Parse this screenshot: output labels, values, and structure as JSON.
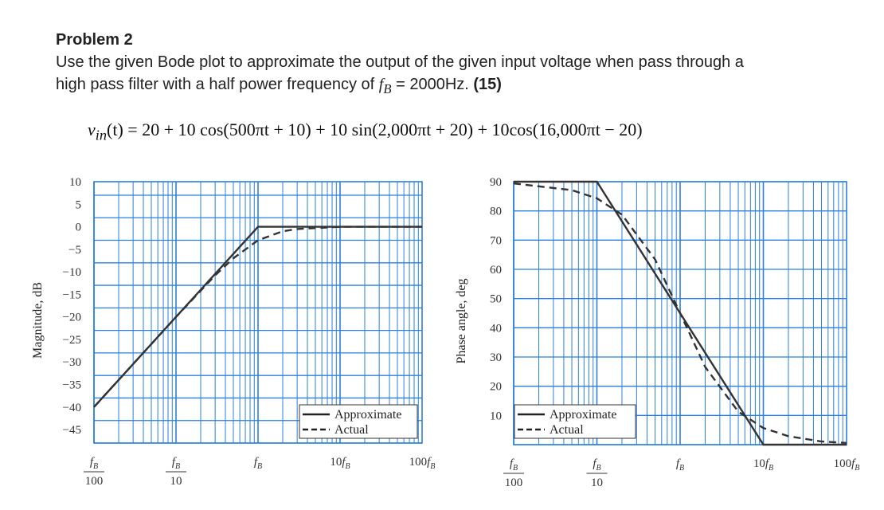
{
  "problem": {
    "title": "Problem 2",
    "line1": "Use the given Bode plot to approximate the output of the given input voltage when pass through a",
    "line2_pre": "high pass filter with a half power frequency of ",
    "fb_symbol": "f",
    "fb_sub": "B",
    "line2_post": " = 2000Hz. ",
    "points": "(15)"
  },
  "equation": {
    "text": "v",
    "sub": "in",
    "rest": "(t) = 20 + 10 cos(500πt + 10) + 10 sin(2,000πt + 20) + 10cos(16,000πt − 20)"
  },
  "chart_data": [
    {
      "type": "line",
      "title": "",
      "xlabel": "",
      "ylabel": "Magnitude, dB",
      "xscale": "log",
      "xlim": [
        0.01,
        100
      ],
      "ylim": [
        -48,
        10
      ],
      "x_tick_labels": [
        {
          "value": 0.01,
          "num": "fB",
          "den": "100"
        },
        {
          "value": 0.1,
          "num": "fB",
          "den": "10"
        },
        {
          "value": 1,
          "num": "fB",
          "den": ""
        },
        {
          "value": 10,
          "num": "10fB",
          "den": ""
        },
        {
          "value": 100,
          "num": "100fB",
          "den": ""
        }
      ],
      "y_ticks": [
        10,
        5,
        0,
        -5,
        -10,
        -15,
        -20,
        -25,
        -30,
        -35,
        -40,
        -45
      ],
      "y_tick_labels": [
        "10",
        "5",
        "0",
        "−5",
        "−10",
        "−15",
        "−20",
        "−25",
        "−30",
        "−35",
        "−40",
        "−45"
      ],
      "series": [
        {
          "name": "Approximate",
          "style": "solid",
          "x": [
            0.01,
            1,
            100
          ],
          "y": [
            -40,
            0,
            0
          ]
        },
        {
          "name": "Actual",
          "style": "dashed",
          "x": [
            0.01,
            0.1,
            0.3,
            0.5,
            1,
            2,
            3,
            10,
            100
          ],
          "y": [
            -40,
            -20,
            -10.8,
            -7,
            -3,
            -1,
            -0.5,
            0,
            0
          ]
        }
      ],
      "legend": {
        "position": "bottom-right",
        "entries": [
          "Approximate",
          "Actual"
        ]
      }
    },
    {
      "type": "line",
      "title": "",
      "xlabel": "",
      "ylabel": "Phase angle, deg",
      "xscale": "log",
      "xlim": [
        0.01,
        100
      ],
      "ylim": [
        0,
        90
      ],
      "x_tick_labels": [
        {
          "value": 0.01,
          "num": "fB",
          "den": "100"
        },
        {
          "value": 0.1,
          "num": "fB",
          "den": "10"
        },
        {
          "value": 1,
          "num": "fB",
          "den": ""
        },
        {
          "value": 10,
          "num": "10fB",
          "den": ""
        },
        {
          "value": 100,
          "num": "100fB",
          "den": ""
        }
      ],
      "y_ticks": [
        90,
        80,
        70,
        60,
        50,
        40,
        30,
        20,
        10
      ],
      "y_tick_labels": [
        "90",
        "80",
        "70",
        "60",
        "50",
        "40",
        "30",
        "20",
        "10"
      ],
      "series": [
        {
          "name": "Approximate",
          "style": "solid",
          "x": [
            0.01,
            0.1,
            10,
            100
          ],
          "y": [
            90,
            90,
            0,
            0
          ]
        },
        {
          "name": "Actual",
          "style": "dashed",
          "x": [
            0.01,
            0.05,
            0.1,
            0.2,
            0.5,
            1,
            2,
            5,
            10,
            20,
            50,
            100
          ],
          "y": [
            89.4,
            87.1,
            84.3,
            78.7,
            63.4,
            45,
            26.6,
            11.3,
            5.7,
            2.9,
            1.1,
            0.6
          ]
        }
      ],
      "legend": {
        "position": "bottom-left",
        "entries": [
          "Approximate",
          "Actual"
        ]
      }
    }
  ]
}
